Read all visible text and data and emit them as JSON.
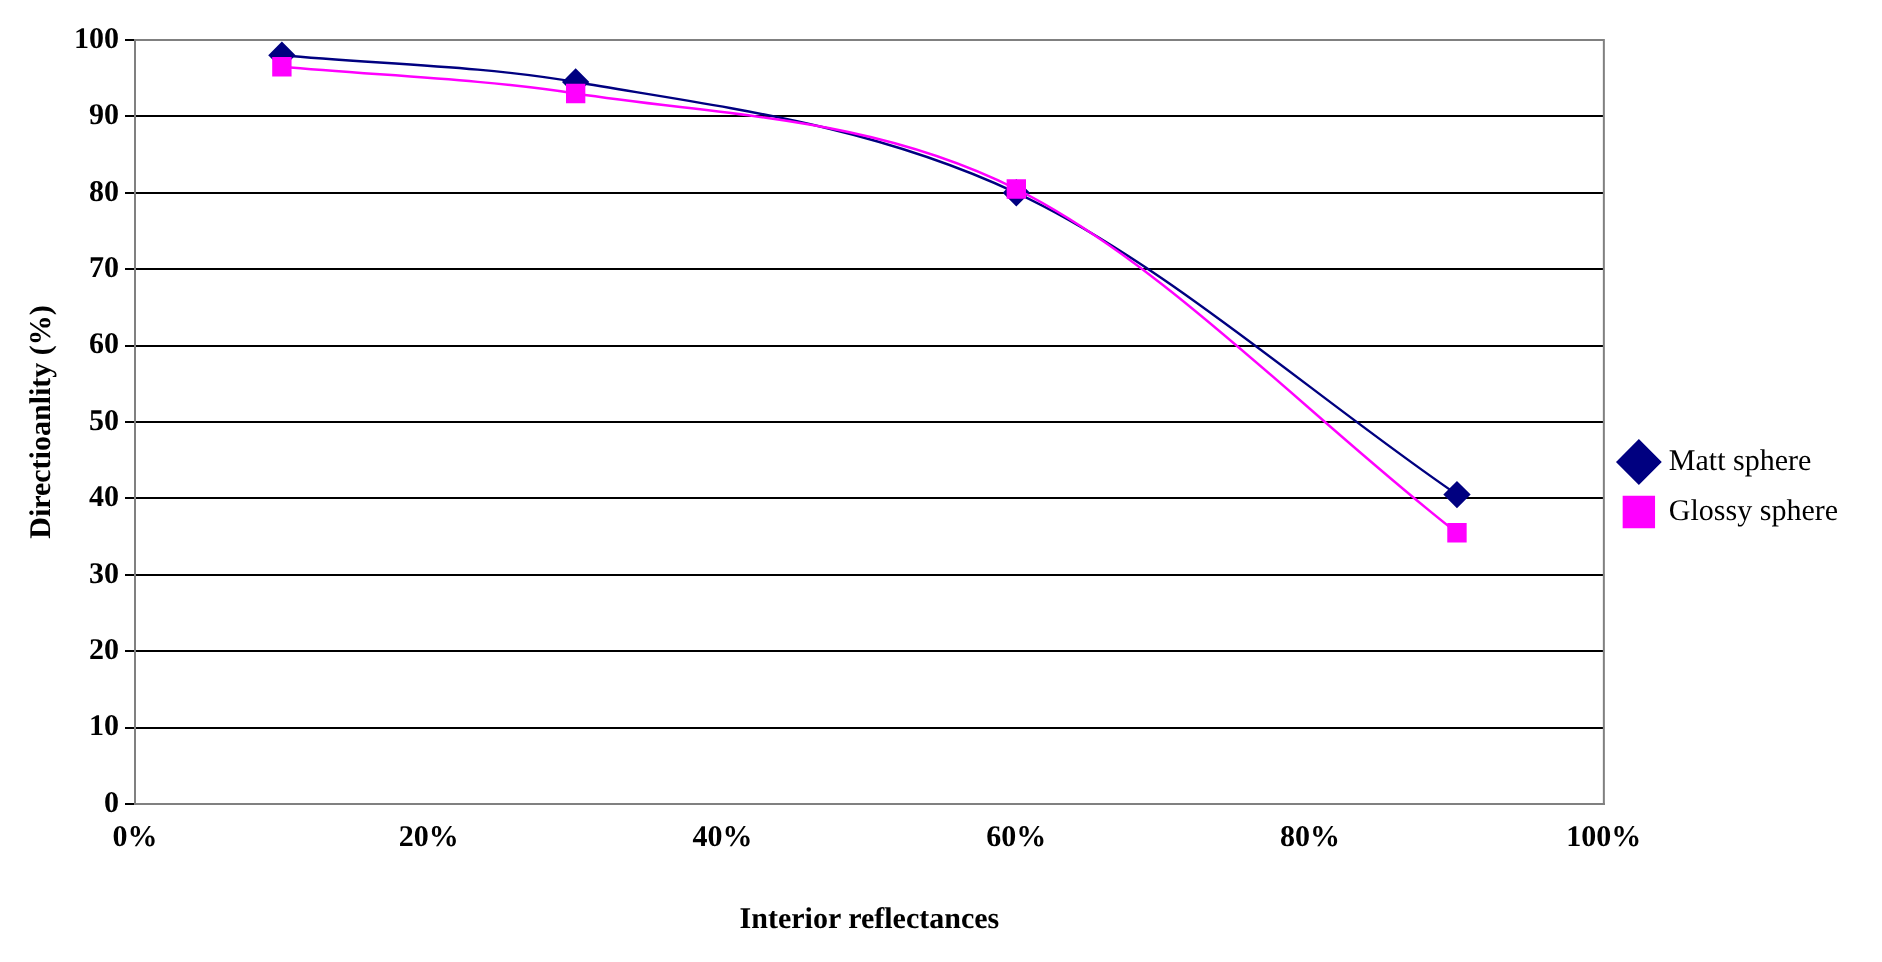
{
  "chart_data": {
    "type": "line",
    "xlabel": "Interior reflectances",
    "ylabel": "Directioanlity (%)",
    "xlim": [
      0,
      100
    ],
    "xticks": [
      {
        "value": 0,
        "label": "0%"
      },
      {
        "value": 20,
        "label": "20%"
      },
      {
        "value": 40,
        "label": "40%"
      },
      {
        "value": 60,
        "label": "60%"
      },
      {
        "value": 80,
        "label": "80%"
      },
      {
        "value": 100,
        "label": "100%"
      }
    ],
    "ylim": [
      0,
      100
    ],
    "yticks": [
      0,
      10,
      20,
      30,
      40,
      50,
      60,
      70,
      80,
      90,
      100
    ],
    "grid": "y",
    "legend": "right",
    "series": [
      {
        "name": "Matt sphere",
        "color": "#000080",
        "marker": "diamond",
        "x": [
          10,
          30,
          60,
          90
        ],
        "values": [
          98,
          94.5,
          80,
          40.5
        ]
      },
      {
        "name": "Glossy sphere",
        "color": "#ff00ff",
        "marker": "square",
        "x": [
          10,
          30,
          60,
          90
        ],
        "values": [
          96.5,
          93,
          80.5,
          35.5
        ]
      }
    ]
  }
}
